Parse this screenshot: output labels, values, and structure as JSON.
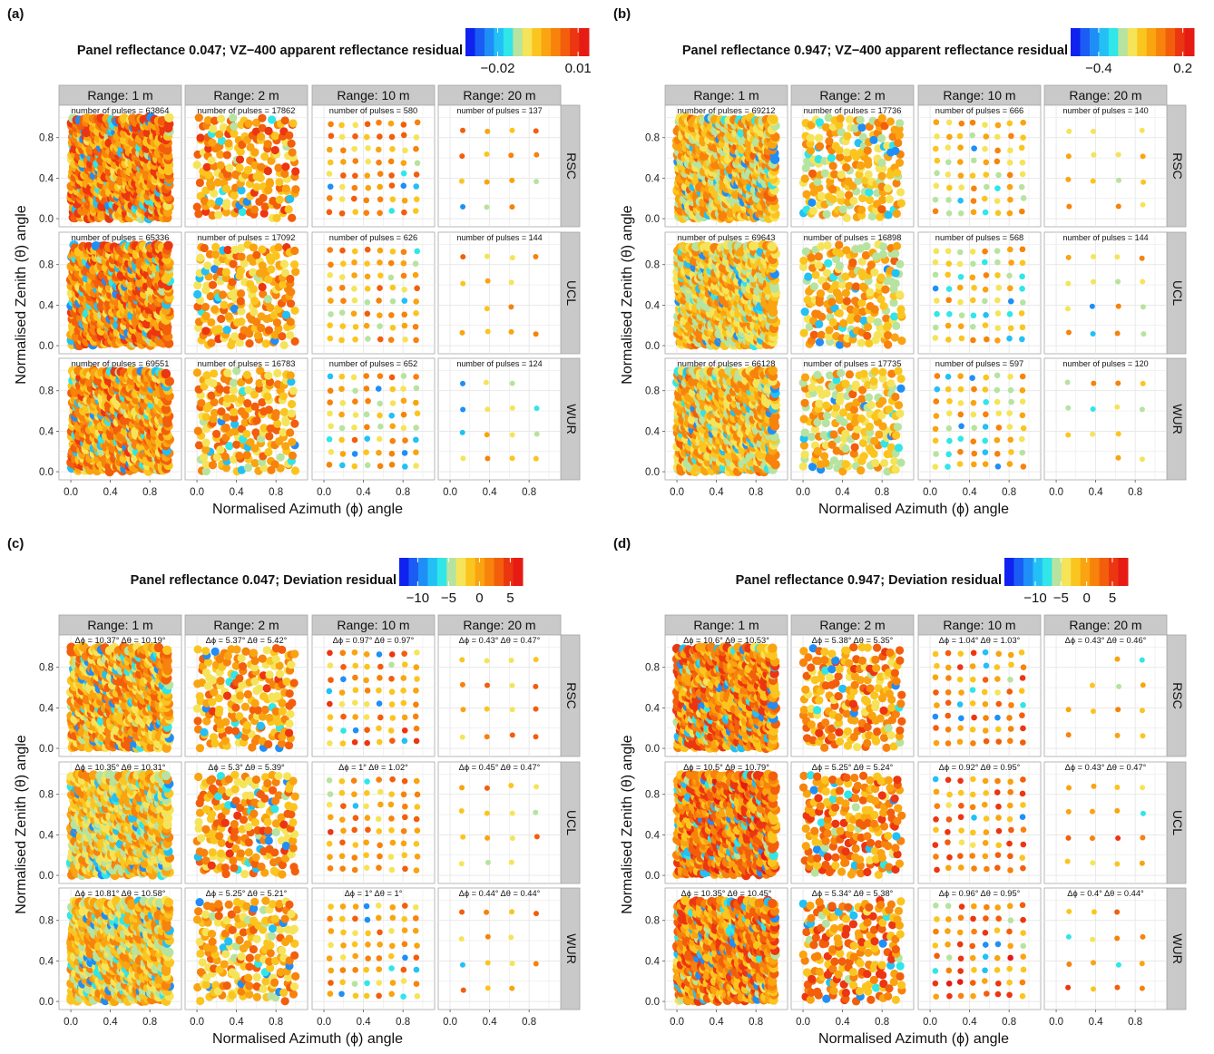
{
  "chart_data": [
    {
      "type": "scatter",
      "panel_label": "(a)",
      "title": "Panel reflectance 0.047; VZ−400 apparent reflectance residual",
      "xlabel": "Normalised Azimuth (ϕ) angle",
      "ylabel": "Normalised Zenith (θ) angle",
      "xlim": [
        -0.12,
        1.12
      ],
      "ylim": [
        -0.08,
        1.12
      ],
      "xticks": [
        "0.0",
        "0.4",
        "0.8"
      ],
      "yticks": [
        "0.0",
        "0.4",
        "0.8"
      ],
      "grid": true,
      "columns": [
        "Range: 1 m",
        "Range: 2 m",
        "Range: 10 m",
        "Range: 20 m"
      ],
      "rows": [
        "RSC",
        "UCL",
        "WUR"
      ],
      "colorbar": {
        "ticks": [
          "−0.02",
          "0.01"
        ],
        "tick_values": [
          -0.02,
          0.01
        ],
        "min": -0.032,
        "max": 0.014
      },
      "annotations": [
        [
          "number of pulses = 63864",
          "number of pulses = 17862",
          "number of pulses = 580",
          "number of pulses = 137"
        ],
        [
          "number of pulses = 65336",
          "number of pulses = 17092",
          "number of pulses = 626",
          "number of pulses = 144"
        ],
        [
          "number of pulses = 69551",
          "number of pulses = 16783",
          "number of pulses = 652",
          "number of pulses = 124"
        ]
      ],
      "residual_level": [
        [
          0.74,
          0.7,
          0.66,
          0.66
        ],
        [
          0.73,
          0.68,
          0.64,
          0.62
        ],
        [
          0.69,
          0.66,
          0.6,
          0.58
        ]
      ]
    },
    {
      "type": "scatter",
      "panel_label": "(b)",
      "title": "Panel reflectance 0.947; VZ−400 apparent reflectance residual",
      "xlabel": "Normalised Azimuth (ϕ) angle",
      "ylabel": "Normalised Zenith (θ) angle",
      "xlim": [
        -0.12,
        1.12
      ],
      "ylim": [
        -0.08,
        1.12
      ],
      "xticks": [
        "0.0",
        "0.4",
        "0.8"
      ],
      "yticks": [
        "0.0",
        "0.4",
        "0.8"
      ],
      "grid": true,
      "columns": [
        "Range: 1 m",
        "Range: 2 m",
        "Range: 10 m",
        "Range: 20 m"
      ],
      "rows": [
        "RSC",
        "UCL",
        "WUR"
      ],
      "colorbar": {
        "ticks": [
          "−0.4",
          "0.2"
        ],
        "tick_values": [
          -0.4,
          0.2
        ],
        "min": -0.6,
        "max": 0.28
      },
      "annotations": [
        [
          "number of pulses = 69212",
          "number of pulses = 17736",
          "number of pulses = 666",
          "number of pulses = 140"
        ],
        [
          "number of pulses = 69643",
          "number of pulses = 16898",
          "number of pulses = 568",
          "number of pulses = 144"
        ],
        [
          "number of pulses = 66128",
          "number of pulses = 17735",
          "number of pulses = 597",
          "number of pulses = 120"
        ]
      ],
      "residual_level": [
        [
          0.6,
          0.6,
          0.58,
          0.58
        ],
        [
          0.59,
          0.6,
          0.56,
          0.56
        ],
        [
          0.6,
          0.6,
          0.58,
          0.56
        ]
      ]
    },
    {
      "type": "scatter",
      "panel_label": "(c)",
      "title": "Panel reflectance 0.047; Deviation residual",
      "xlabel": "Normalised Azimuth (ϕ) angle",
      "ylabel": "Normalised Zenith (θ) angle",
      "xlim": [
        -0.12,
        1.12
      ],
      "ylim": [
        -0.08,
        1.12
      ],
      "xticks": [
        "0.0",
        "0.4",
        "0.8"
      ],
      "yticks": [
        "0.0",
        "0.4",
        "0.8"
      ],
      "grid": true,
      "columns": [
        "Range: 1 m",
        "Range: 2 m",
        "Range: 10 m",
        "Range: 20 m"
      ],
      "rows": [
        "RSC",
        "UCL",
        "WUR"
      ],
      "colorbar": {
        "ticks": [
          "−10",
          "−5",
          "0",
          "5"
        ],
        "tick_values": [
          -10,
          -5,
          0,
          5
        ],
        "min": -13,
        "max": 7
      },
      "annotations": [
        [
          "Δϕ = 10.37°     Δθ = 10.19°",
          "Δϕ = 5.37°     Δθ = 5.42°",
          "Δϕ = 0.97°     Δθ = 0.97°",
          "Δϕ = 0.43°     Δθ = 0.47°"
        ],
        [
          "Δϕ = 10.35°     Δθ = 10.31°",
          "Δϕ = 5.3°     Δθ = 5.39°",
          "Δϕ = 1°     Δθ = 1.02°",
          "Δϕ = 0.45°     Δθ = 0.47°"
        ],
        [
          "Δϕ = 10.81°     Δθ = 10.58°",
          "Δϕ = 5.25°     Δθ = 5.21°",
          "Δϕ = 1°     Δθ = 1°",
          "Δϕ = 0.44°     Δθ = 0.44°"
        ]
      ],
      "residual_level": [
        [
          0.66,
          0.68,
          0.72,
          0.66
        ],
        [
          0.58,
          0.68,
          0.7,
          0.66
        ],
        [
          0.58,
          0.66,
          0.66,
          0.64
        ]
      ]
    },
    {
      "type": "scatter",
      "panel_label": "(d)",
      "title": "Panel reflectance 0.947; Deviation residual",
      "xlabel": "Normalised Azimuth (ϕ) angle",
      "ylabel": "Normalised Zenith (θ) angle",
      "xlim": [
        -0.12,
        1.12
      ],
      "ylim": [
        -0.08,
        1.12
      ],
      "xticks": [
        "0.0",
        "0.4",
        "0.8"
      ],
      "yticks": [
        "0.0",
        "0.4",
        "0.8"
      ],
      "grid": true,
      "columns": [
        "Range: 1 m",
        "Range: 2 m",
        "Range: 10 m",
        "Range: 20 m"
      ],
      "rows": [
        "RSC",
        "UCL",
        "WUR"
      ],
      "colorbar": {
        "ticks": [
          "−10",
          "−5",
          "0",
          "5"
        ],
        "tick_values": [
          -10,
          -5,
          0,
          5
        ],
        "min": -16,
        "max": 8
      },
      "annotations": [
        [
          "Δϕ = 10.6°     Δθ = 10.53°",
          "Δϕ = 5.38°     Δθ = 5.35°",
          "Δϕ = 1.04°     Δθ = 1.03°",
          "Δϕ = 0.43°     Δθ = 0.46°"
        ],
        [
          "Δϕ = 10.5°     Δθ = 10.79°",
          "Δϕ = 5.25°     Δθ = 5.24°",
          "Δϕ = 0.92°     Δθ = 0.95°",
          "Δϕ = 0.43°     Δθ = 0.47°"
        ],
        [
          "Δϕ = 10.35°     Δθ = 10.45°",
          "Δϕ = 5.34°     Δθ = 5.38°",
          "Δϕ = 0.96°     Δθ = 0.95°",
          "Δϕ = 0.4°     Δθ = 0.44°"
        ]
      ],
      "residual_level": [
        [
          0.74,
          0.7,
          0.74,
          0.7
        ],
        [
          0.76,
          0.74,
          0.74,
          0.7
        ],
        [
          0.74,
          0.74,
          0.76,
          0.7
        ]
      ]
    }
  ],
  "colors": {
    "palette": [
      "#1022f0",
      "#1b5cf4",
      "#1f8ef7",
      "#22c0f5",
      "#30e6e8",
      "#b7e3a0",
      "#f5e45a",
      "#fbc520",
      "#f9a410",
      "#f7820c",
      "#f25e0c",
      "#ec3511",
      "#e51b14"
    ],
    "strip_fill": "#c9c9c9",
    "panel_border": "#a6a6a6",
    "gridline": "#e6e6e6"
  }
}
